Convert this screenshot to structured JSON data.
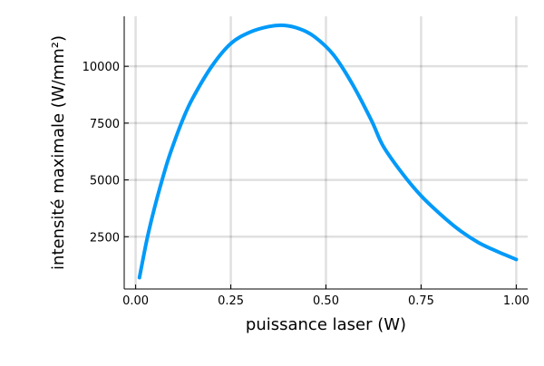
{
  "chart_data": {
    "type": "line",
    "title": "",
    "xlabel": "puissance laser (W)",
    "ylabel": "intensité maximale (W/mm²)",
    "xlim": [
      -0.03,
      1.03
    ],
    "ylim": [
      200,
      12200
    ],
    "x_ticks": [
      0.0,
      0.25,
      0.5,
      0.75,
      1.0
    ],
    "x_tick_labels": [
      "0.00",
      "0.25",
      "0.50",
      "0.75",
      "1.00"
    ],
    "y_ticks": [
      2500,
      5000,
      7500,
      10000
    ],
    "y_tick_labels": [
      "2500",
      "5000",
      "7500",
      "10000"
    ],
    "grid": true,
    "legend": "none",
    "colors": {
      "series": "#009af9",
      "grid": "#e6e6e6",
      "axis": "#000000"
    },
    "series": [
      {
        "x": [
          0.01,
          0.03,
          0.05,
          0.08,
          0.1,
          0.125,
          0.15,
          0.2,
          0.25,
          0.3,
          0.35,
          0.39,
          0.43,
          0.47,
          0.52,
          0.57,
          0.62,
          0.65,
          0.7,
          0.75,
          0.8,
          0.85,
          0.9,
          0.95,
          1.0
        ],
        "y": [
          700,
          2400,
          3800,
          5600,
          6600,
          7700,
          8600,
          10000,
          11000,
          11500,
          11750,
          11800,
          11650,
          11300,
          10500,
          9200,
          7600,
          6500,
          5300,
          4300,
          3500,
          2800,
          2250,
          1850,
          1500
        ]
      }
    ]
  }
}
